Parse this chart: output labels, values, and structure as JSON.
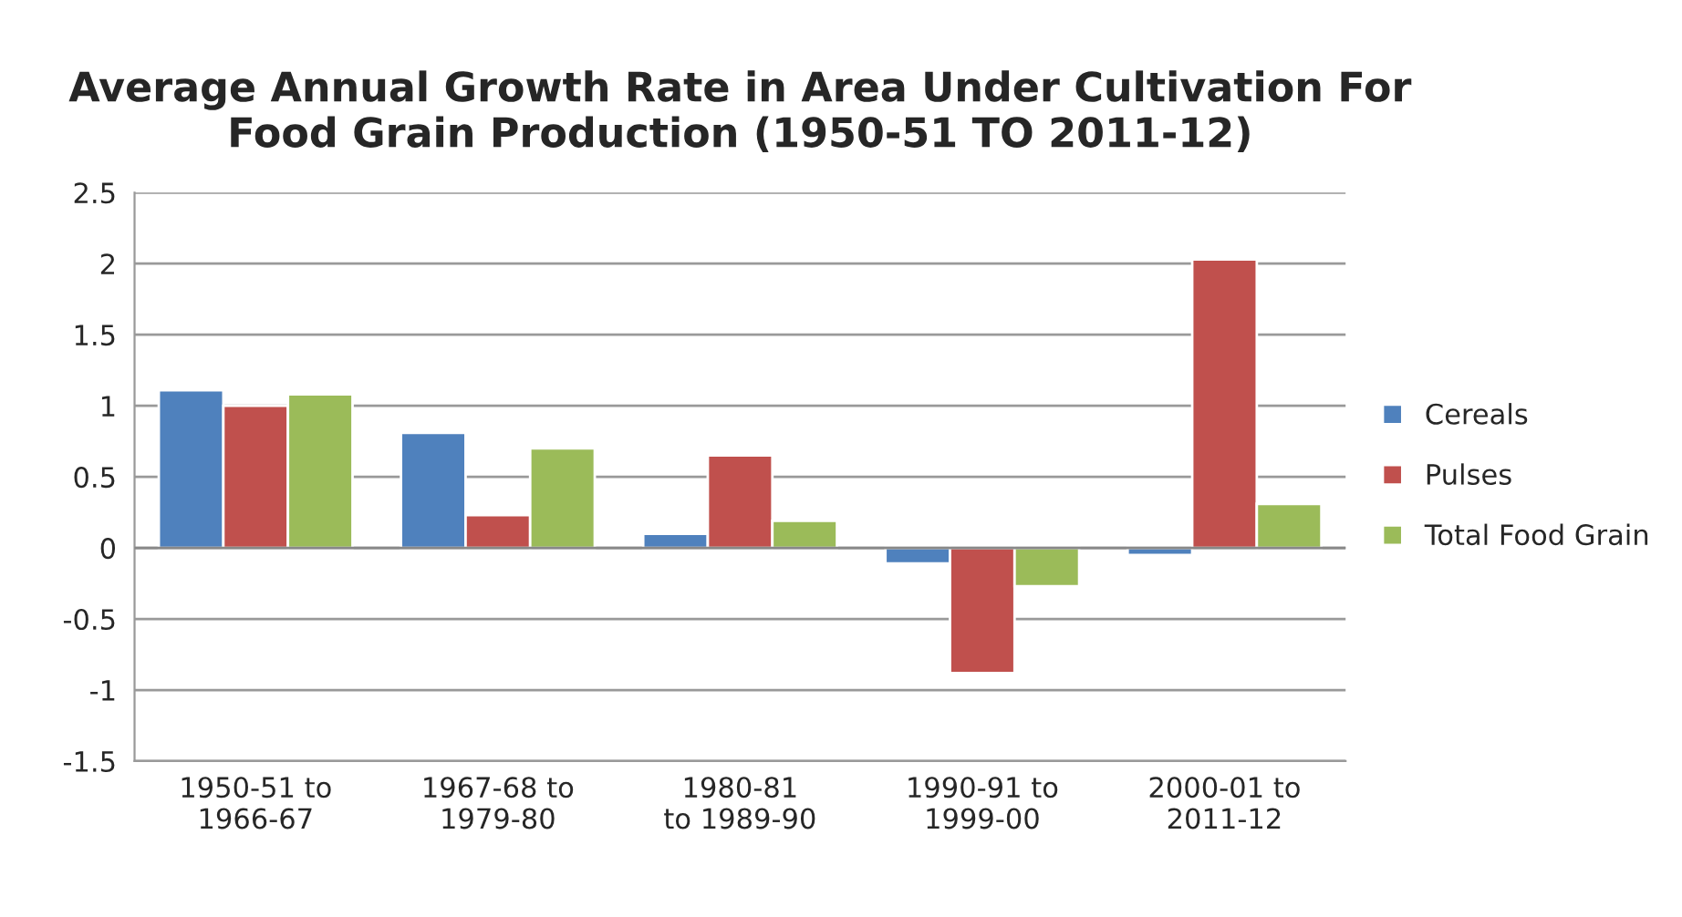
{
  "chart_data": {
    "type": "bar",
    "title": "Average Annual Growth Rate in Area Under Cultivation For\nFood Grain Production (1950-51 TO 2011-12)",
    "categories": [
      "1950-51 to\n1966-67",
      "1967-68 to\n1979-80",
      "1980-81\nto 1989-90",
      "1990-91 to\n1999-00",
      "2000-01 to\n2011-12"
    ],
    "series": [
      {
        "name": "Cereals",
        "color": "#4f81bd",
        "values": [
          1.11,
          0.81,
          0.1,
          -0.11,
          -0.05
        ]
      },
      {
        "name": "Pulses",
        "color": "#c0504d",
        "values": [
          1.0,
          0.23,
          0.65,
          -0.88,
          2.03
        ]
      },
      {
        "name": "Total Food Grain",
        "color": "#9bbb59",
        "values": [
          1.08,
          0.7,
          0.19,
          -0.27,
          0.31
        ]
      }
    ],
    "ylim": [
      -1.5,
      2.5
    ],
    "yticks": [
      -1.5,
      -1,
      -0.5,
      0,
      0.5,
      1,
      1.5,
      2,
      2.5
    ],
    "grid": "y",
    "legend": "right"
  }
}
